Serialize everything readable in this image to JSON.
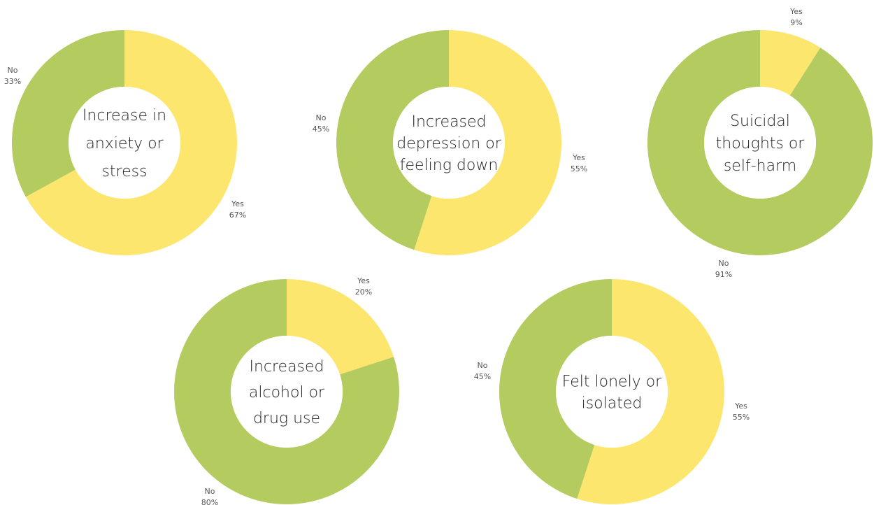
{
  "colors": {
    "yes": "#fde66e",
    "no": "#b4cb5f",
    "hole": "#ffffff",
    "text": "#222222",
    "label": "#555555"
  },
  "chart_data": [
    {
      "type": "pie",
      "style": "donut",
      "title": [
        "Increase in",
        "anxiety or",
        "stress"
      ],
      "slices": [
        {
          "label": "Yes",
          "value": 67,
          "display": "67%"
        },
        {
          "label": "No",
          "value": 33,
          "display": "33%"
        }
      ]
    },
    {
      "type": "pie",
      "style": "donut",
      "title": [
        "Increased",
        "depression or",
        "feeling down"
      ],
      "slices": [
        {
          "label": "Yes",
          "value": 55,
          "display": "55%"
        },
        {
          "label": "No",
          "value": 45,
          "display": "45%"
        }
      ]
    },
    {
      "type": "pie",
      "style": "donut",
      "title": [
        "Suicidal",
        "thoughts or",
        "self-harm"
      ],
      "slices": [
        {
          "label": "Yes",
          "value": 9,
          "display": "9%"
        },
        {
          "label": "No",
          "value": 91,
          "display": "91%"
        }
      ]
    },
    {
      "type": "pie",
      "style": "donut",
      "title": [
        "Increased",
        "alcohol or",
        "drug use"
      ],
      "slices": [
        {
          "label": "Yes",
          "value": 20,
          "display": "20%"
        },
        {
          "label": "No",
          "value": 80,
          "display": "80%"
        }
      ]
    },
    {
      "type": "pie",
      "style": "donut",
      "title": [
        "Felt lonely or",
        "isolated"
      ],
      "slices": [
        {
          "label": "Yes",
          "value": 55,
          "display": "55%"
        },
        {
          "label": "No",
          "value": 45,
          "display": "45%"
        }
      ]
    }
  ]
}
